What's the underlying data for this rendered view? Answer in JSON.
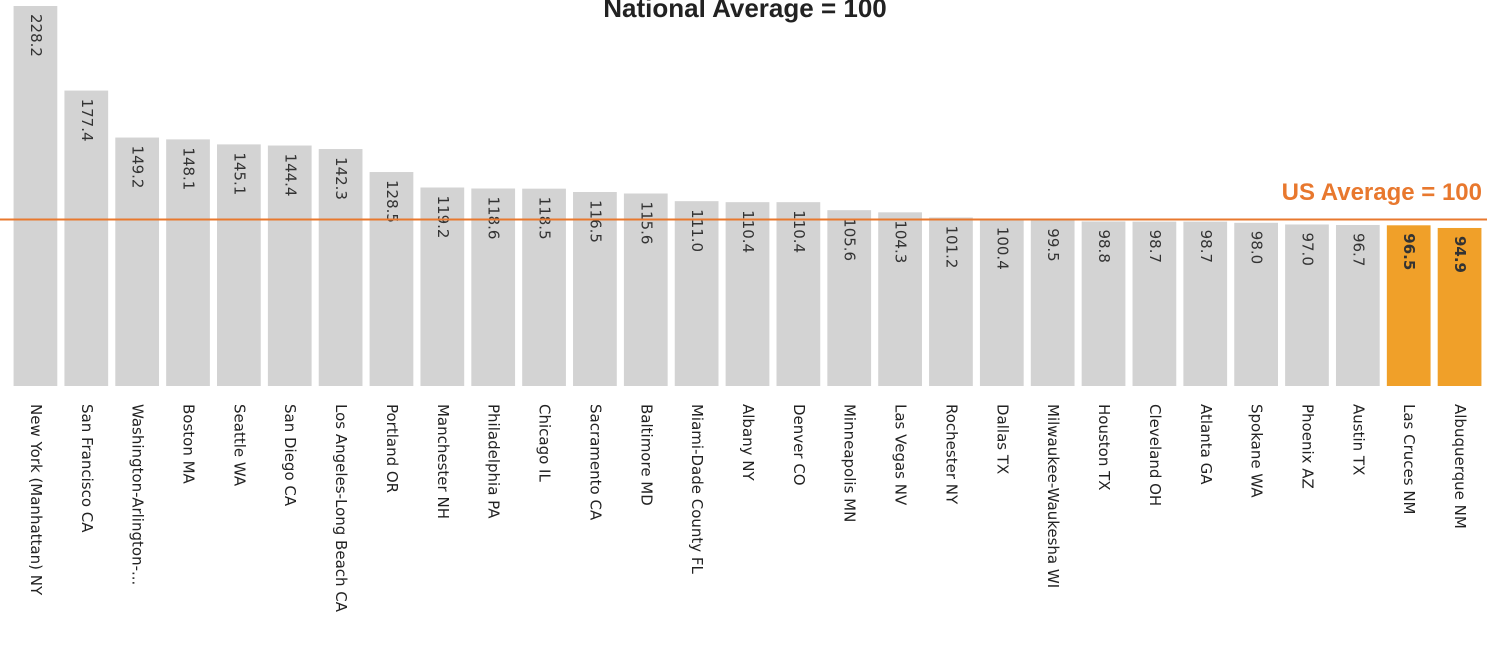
{
  "chart_data": {
    "type": "bar",
    "title": "National Average = 100",
    "categories": [
      "New York (Manhattan) NY",
      "San Francisco CA",
      "Washington-Arlington-...",
      "Boston MA",
      "Seattle WA",
      "San Diego CA",
      "Los Angeles-Long Beach CA",
      "Portland OR",
      "Manchester NH",
      "Philadelphia PA",
      "Chicago IL",
      "Sacramento CA",
      "Baltimore MD",
      "Miami-Dade County FL",
      "Albany NY",
      "Denver CO",
      "Minneapolis MN",
      "Las Vegas NV",
      "Rochester NY",
      "Dallas TX",
      "Milwaukee-Waukesha WI",
      "Houston TX",
      "Cleveland OH",
      "Atlanta GA",
      "Spokane WA",
      "Phoenix AZ",
      "Austin TX",
      "Las Cruces NM",
      "Albuquerque NM"
    ],
    "values": [
      228.2,
      177.4,
      149.2,
      148.1,
      145.1,
      144.4,
      142.3,
      128.5,
      119.2,
      118.6,
      118.5,
      116.5,
      115.6,
      111.0,
      110.4,
      110.4,
      105.6,
      104.3,
      101.2,
      100.4,
      99.5,
      98.8,
      98.7,
      98.7,
      98.0,
      97.0,
      96.7,
      96.5,
      94.9
    ],
    "value_labels": [
      "228.2",
      "177.4",
      "149.2",
      "148.1",
      "145.1",
      "144.4",
      "142.3",
      "128.5",
      "119.2",
      "118.6",
      "118.5",
      "116.5",
      "115.6",
      "111.0",
      "110.4",
      "110.4",
      "105.6",
      "104.3",
      "101.2",
      "100.4",
      "99.5",
      "98.8",
      "98.7",
      "98.7",
      "98.0",
      "97.0",
      "96.7",
      "96.5",
      "94.9"
    ],
    "colors": [
      "#d3d3d3",
      "#d3d3d3",
      "#d3d3d3",
      "#d3d3d3",
      "#d3d3d3",
      "#d3d3d3",
      "#d3d3d3",
      "#d3d3d3",
      "#d3d3d3",
      "#d3d3d3",
      "#d3d3d3",
      "#d3d3d3",
      "#d3d3d3",
      "#d3d3d3",
      "#d3d3d3",
      "#d3d3d3",
      "#d3d3d3",
      "#d3d3d3",
      "#d3d3d3",
      "#d3d3d3",
      "#d3d3d3",
      "#d3d3d3",
      "#d3d3d3",
      "#d3d3d3",
      "#d3d3d3",
      "#d3d3d3",
      "#d3d3d3",
      "#f0a029",
      "#f0a029"
    ],
    "ylim": [
      0,
      230
    ],
    "reference_line": {
      "value": 100,
      "label": "US Average = 100",
      "color": "#e8782e"
    }
  }
}
